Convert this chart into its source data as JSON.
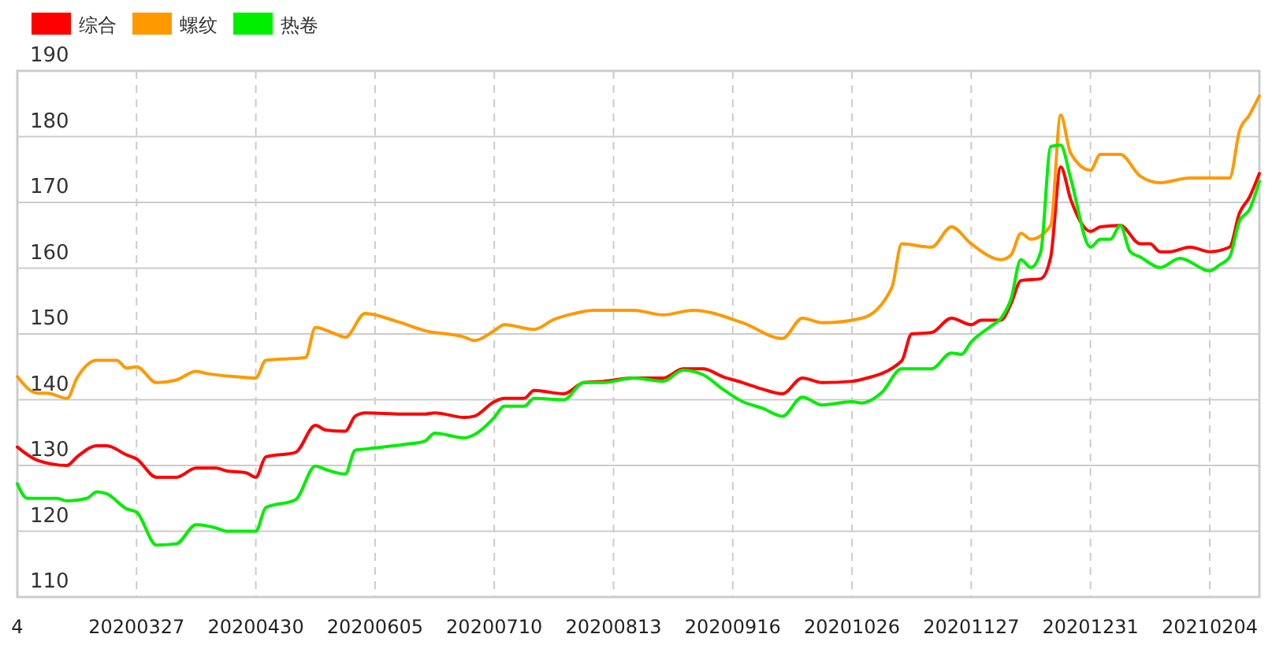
{
  "chart_data": {
    "type": "line",
    "legend": "top left",
    "grid": true,
    "marker": "none",
    "line_style": "solid",
    "ylim": [
      110,
      190
    ],
    "yticks": [
      110,
      120,
      130,
      140,
      150,
      160,
      170,
      180,
      190
    ],
    "categories": [
      "4",
      null,
      null,
      null,
      null,
      null,
      null,
      null,
      null,
      null,
      null,
      null,
      "20200327",
      null,
      null,
      null,
      null,
      null,
      null,
      null,
      null,
      null,
      null,
      null,
      "20200430",
      null,
      null,
      null,
      null,
      null,
      null,
      null,
      null,
      null,
      null,
      null,
      "20200605",
      null,
      null,
      null,
      null,
      null,
      null,
      null,
      null,
      null,
      null,
      null,
      "20200710",
      null,
      null,
      null,
      null,
      null,
      null,
      null,
      null,
      null,
      null,
      null,
      "20200813",
      null,
      null,
      null,
      null,
      null,
      null,
      null,
      null,
      null,
      null,
      null,
      "20200916",
      null,
      null,
      null,
      null,
      null,
      null,
      null,
      null,
      null,
      null,
      null,
      "20201026",
      null,
      null,
      null,
      null,
      null,
      null,
      null,
      null,
      null,
      null,
      null,
      "20201127",
      null,
      null,
      null,
      null,
      null,
      null,
      null,
      null,
      null,
      null,
      null,
      "20201231",
      null,
      null,
      null,
      null,
      null,
      null,
      null,
      null,
      null,
      null,
      null,
      "20210204",
      null,
      null,
      null,
      null,
      null
    ],
    "series": [
      {
        "name": "综合",
        "color": "#ff0000",
        "values": [
          132.8,
          null,
          130.8,
          null,
          null,
          130,
          131.3,
          null,
          133,
          133,
          null,
          131.6,
          131,
          null,
          128.2,
          null,
          128.2,
          null,
          129.6,
          null,
          129.6,
          129.2,
          null,
          128.9,
          128.2,
          131.3,
          null,
          null,
          132,
          null,
          136.1,
          135.4,
          null,
          135.2,
          137.5,
          138,
          null,
          null,
          null,
          137.8,
          null,
          137.8,
          138,
          null,
          null,
          137.3,
          137.5,
          null,
          139.7,
          140.2,
          null,
          140.2,
          141.4,
          null,
          null,
          140.9,
          null,
          142.6,
          null,
          142.8,
          null,
          null,
          143.3,
          null,
          null,
          143.3,
          null,
          144.7,
          null,
          144.7,
          null,
          143.5,
          null,
          142.6,
          null,
          141.6,
          null,
          140.9,
          null,
          143.3,
          null,
          142.6,
          null,
          null,
          142.8,
          143.1,
          null,
          null,
          null,
          145.9,
          150,
          null,
          150.2,
          null,
          152.4,
          null,
          151.4,
          152.1,
          null,
          152.1,
          154.6,
          158.1,
          null,
          158.4,
          161.7,
          175.4,
          170.5,
          null,
          165.6,
          166.3,
          null,
          166.5,
          null,
          163.7,
          163.7,
          162.5,
          162.5,
          null,
          163.2,
          null,
          162.5,
          null,
          163.2,
          168.4,
          170.8,
          174.4
        ]
      },
      {
        "name": "螺纹",
        "color": "#ff9900",
        "values": [
          143.5,
          null,
          141,
          141,
          null,
          140.2,
          143.3,
          null,
          146,
          null,
          146,
          144.8,
          145,
          null,
          142.6,
          null,
          143,
          null,
          144.3,
          144,
          null,
          null,
          143.5,
          null,
          143.3,
          146,
          null,
          null,
          null,
          146.4,
          151,
          null,
          150,
          149.5,
          null,
          153.1,
          null,
          null,
          152,
          null,
          null,
          150.5,
          null,
          null,
          null,
          149.5,
          149,
          null,
          150.5,
          151.4,
          null,
          null,
          150.7,
          null,
          152.2,
          null,
          153.1,
          null,
          153.6,
          null,
          null,
          null,
          153.6,
          null,
          null,
          152.9,
          null,
          null,
          153.6,
          null,
          null,
          null,
          null,
          151.7,
          null,
          null,
          null,
          149.3,
          null,
          152.4,
          null,
          151.7,
          null,
          null,
          null,
          152.4,
          null,
          null,
          157,
          163.7,
          null,
          null,
          163.2,
          null,
          166.3,
          null,
          163.7,
          null,
          null,
          161.3,
          162,
          165.3,
          164.4,
          null,
          166.5,
          183.3,
          177.5,
          null,
          174.9,
          177.3,
          null,
          177.3,
          null,
          174,
          null,
          173,
          null,
          null,
          173.7,
          null,
          null,
          null,
          173.7,
          180.9,
          183.3,
          186.2
        ]
      },
      {
        "name": "热卷",
        "color": "#00ee00",
        "values": [
          127.2,
          125,
          null,
          null,
          125,
          124.6,
          null,
          125,
          126,
          125.7,
          null,
          123.4,
          122.9,
          null,
          117.9,
          null,
          118.1,
          null,
          121,
          null,
          120.5,
          120,
          null,
          null,
          120,
          123.6,
          null,
          null,
          124.8,
          null,
          129.9,
          129.4,
          null,
          128.7,
          132.3,
          132.5,
          null,
          null,
          null,
          133.2,
          null,
          133.7,
          134.9,
          null,
          null,
          134.2,
          134.7,
          null,
          137.3,
          139,
          null,
          139,
          140.2,
          null,
          null,
          140,
          null,
          142.6,
          null,
          142.6,
          null,
          null,
          143.3,
          null,
          null,
          142.8,
          null,
          144.5,
          null,
          143.8,
          null,
          141.6,
          null,
          139.7,
          null,
          138.7,
          null,
          137.5,
          null,
          140.4,
          null,
          139.2,
          null,
          null,
          139.7,
          139.5,
          null,
          141.1,
          null,
          144.7,
          null,
          null,
          144.7,
          null,
          147.1,
          146.9,
          148.8,
          null,
          151.2,
          152.4,
          155.3,
          161.3,
          160.1,
          162.5,
          178.5,
          178.7,
          173.7,
          null,
          163.2,
          164.4,
          164.4,
          166.5,
          162.5,
          161.7,
          null,
          160.1,
          null,
          161.5,
          null,
          null,
          159.6,
          160.5,
          161.7,
          167.2,
          168.9,
          173.2
        ]
      }
    ]
  }
}
